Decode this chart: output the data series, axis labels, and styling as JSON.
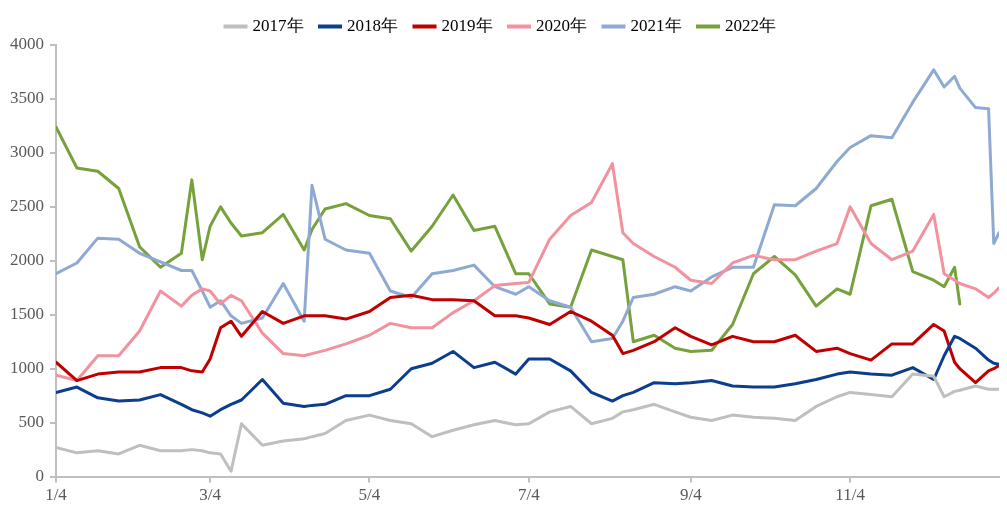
{
  "chart_data": {
    "type": "line",
    "legend": "top",
    "grid": false,
    "marker": "none",
    "line_style": "solid",
    "x": [
      "--01-04",
      "--01-12",
      "--01-20",
      "--01-28",
      "--02-05",
      "--02-13",
      "--02-21",
      "--02-25",
      "--03-01",
      "--03-04",
      "--03-08",
      "--03-12",
      "--03-16",
      "--03-24",
      "--04-01",
      "--04-09",
      "--04-12",
      "--04-17",
      "--04-25",
      "--05-04",
      "--05-12",
      "--05-20",
      "--05-28",
      "--06-05",
      "--06-13",
      "--06-21",
      "--06-29",
      "--07-04",
      "--07-12",
      "--07-20",
      "--07-28",
      "--08-05",
      "--08-09",
      "--08-13",
      "--08-21",
      "--08-29",
      "--09-04",
      "--09-12",
      "--09-20",
      "--09-28",
      "--10-06",
      "--10-14",
      "--10-22",
      "--10-30",
      "--11-04",
      "--11-12",
      "--11-20",
      "--11-28",
      "--12-06",
      "--12-10",
      "--12-14",
      "--12-16",
      "--12-22",
      "--12-27",
      "--12-29",
      "--12-31"
    ],
    "xlim": [
      "--01-04",
      "--12-31"
    ],
    "xticks": [
      {
        "value": "--01-04",
        "label": "1/4"
      },
      {
        "value": "--03-04",
        "label": "3/4"
      },
      {
        "value": "--05-04",
        "label": "5/4"
      },
      {
        "value": "--07-04",
        "label": "7/4"
      },
      {
        "value": "--09-04",
        "label": "9/4"
      },
      {
        "value": "--11-04",
        "label": "11/4"
      }
    ],
    "ylim": [
      0,
      4000
    ],
    "yticks": [
      0,
      500,
      1000,
      1500,
      2000,
      2500,
      3000,
      3500,
      4000
    ],
    "series": [
      {
        "name": "2017年",
        "color": "#bfbfbf",
        "values": [
          270,
          220,
          240,
          210,
          290,
          240,
          240,
          250,
          240,
          220,
          210,
          50,
          490,
          290,
          330,
          350,
          370,
          400,
          520,
          570,
          520,
          490,
          370,
          430,
          480,
          520,
          480,
          490,
          600,
          650,
          490,
          540,
          600,
          620,
          670,
          600,
          550,
          520,
          570,
          550,
          540,
          520,
          650,
          740,
          780,
          760,
          740,
          950,
          930,
          740,
          790,
          800,
          840,
          810,
          810,
          810
        ]
      },
      {
        "name": "2018年",
        "color": "#0b3e8c",
        "values": [
          780,
          830,
          730,
          700,
          710,
          760,
          670,
          620,
          590,
          560,
          620,
          670,
          710,
          900,
          680,
          650,
          660,
          670,
          750,
          750,
          810,
          1000,
          1050,
          1160,
          1010,
          1060,
          950,
          1090,
          1090,
          980,
          780,
          700,
          750,
          780,
          870,
          860,
          870,
          890,
          840,
          830,
          830,
          860,
          900,
          950,
          970,
          950,
          940,
          1010,
          900,
          1120,
          1300,
          1280,
          1190,
          1080,
          1050,
          1040
        ]
      },
      {
        "name": "2019年",
        "color": "#c00000",
        "values": [
          1060,
          890,
          950,
          970,
          970,
          1010,
          1010,
          980,
          970,
          1090,
          1380,
          1440,
          1300,
          1530,
          1420,
          1490,
          1490,
          1490,
          1460,
          1530,
          1660,
          1680,
          1640,
          1640,
          1630,
          1490,
          1490,
          1470,
          1410,
          1530,
          1440,
          1310,
          1140,
          1170,
          1250,
          1380,
          1300,
          1220,
          1300,
          1250,
          1250,
          1310,
          1160,
          1190,
          1140,
          1080,
          1230,
          1230,
          1410,
          1350,
          1060,
          1000,
          870,
          980,
          1000,
          1030
        ]
      },
      {
        "name": "2020年",
        "color": "#f2929e",
        "values": [
          940,
          890,
          1120,
          1120,
          1350,
          1720,
          1580,
          1680,
          1740,
          1720,
          1600,
          1680,
          1630,
          1330,
          1140,
          1120,
          1140,
          1170,
          1230,
          1310,
          1420,
          1380,
          1380,
          1520,
          1630,
          1770,
          1790,
          1800,
          2200,
          2420,
          2540,
          2900,
          2260,
          2160,
          2040,
          1940,
          1820,
          1790,
          1980,
          2050,
          2010,
          2010,
          2090,
          2160,
          2500,
          2160,
          2010,
          2090,
          2430,
          1880,
          1820,
          1790,
          1740,
          1660,
          1700,
          1750
        ]
      },
      {
        "name": "2021年",
        "color": "#8eaad2",
        "values": [
          1880,
          1980,
          2210,
          2200,
          2070,
          1990,
          1910,
          1910,
          1720,
          1570,
          1630,
          1490,
          1420,
          1470,
          1790,
          1440,
          2700,
          2200,
          2100,
          2070,
          1720,
          1660,
          1880,
          1910,
          1960,
          1760,
          1690,
          1760,
          1630,
          1570,
          1250,
          1280,
          1440,
          1660,
          1690,
          1760,
          1720,
          1850,
          1940,
          1940,
          2520,
          2510,
          2670,
          2920,
          3050,
          3160,
          3140,
          3470,
          3770,
          3610,
          3710,
          3600,
          3420,
          3410,
          2160,
          2260
        ]
      },
      {
        "name": "2022年",
        "color": "#77a13b",
        "values": [
          3240,
          2860,
          2830,
          2670,
          2130,
          1940,
          2070,
          2750,
          2010,
          2320,
          2500,
          2350,
          2230,
          2260,
          2430,
          2100,
          2290,
          2480,
          2530,
          2420,
          2390,
          2090,
          2320,
          2610,
          2280,
          2320,
          1880,
          1880,
          1600,
          1570,
          2100,
          2040,
          2010,
          1250,
          1310,
          1190,
          1160,
          1170,
          1410,
          1880,
          2040,
          1870,
          1580,
          1740,
          1690,
          2510,
          2570,
          1900,
          1820,
          1760,
          1940,
          1600,
          null,
          null,
          null,
          null
        ]
      }
    ]
  }
}
